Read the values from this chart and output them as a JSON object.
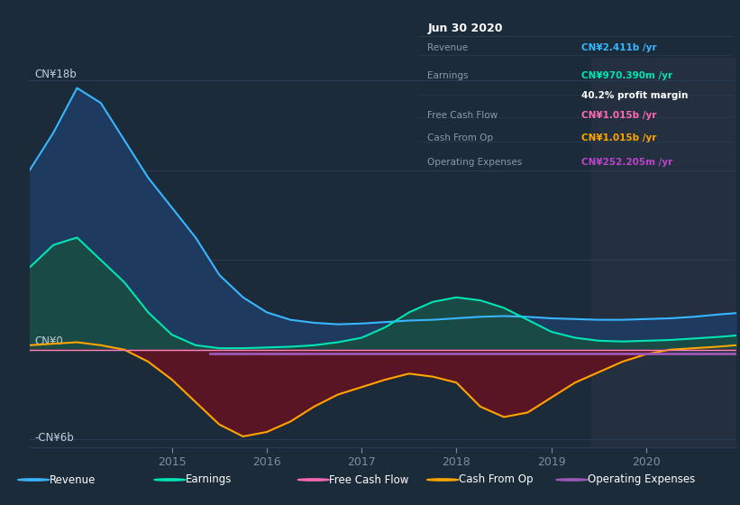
{
  "background_color": "#1c2b3a",
  "plot_bg_color": "#1c2b3a",
  "shaded_region_color": "#243040",
  "ylabel_top": "CN¥18b",
  "ylabel_zero": "CN¥0",
  "ylabel_bottom": "-CN¥6b",
  "x_ticks": [
    2015,
    2016,
    2017,
    2018,
    2019,
    2020
  ],
  "ylim": [
    -6.5,
    19.5
  ],
  "xlim": [
    2013.5,
    2020.95
  ],
  "shaded_x_start": 2019.42,
  "tooltip_title": "Jun 30 2020",
  "legend_items": [
    {
      "label": "Revenue",
      "color": "#38b6ff"
    },
    {
      "label": "Earnings",
      "color": "#00e5b4"
    },
    {
      "label": "Free Cash Flow",
      "color": "#ff69b4"
    },
    {
      "label": "Cash From Op",
      "color": "#ffa500"
    },
    {
      "label": "Operating Expenses",
      "color": "#9b59b6"
    }
  ],
  "x": [
    2013.5,
    2013.75,
    2014.0,
    2014.25,
    2014.5,
    2014.75,
    2015.0,
    2015.25,
    2015.5,
    2015.75,
    2016.0,
    2016.25,
    2016.5,
    2016.75,
    2017.0,
    2017.25,
    2017.5,
    2017.75,
    2018.0,
    2018.25,
    2018.5,
    2018.75,
    2019.0,
    2019.25,
    2019.5,
    2019.75,
    2020.0,
    2020.25,
    2020.5,
    2020.75,
    2020.95
  ],
  "revenue": [
    12,
    14.5,
    17.5,
    16.5,
    14,
    11.5,
    9.5,
    7.5,
    5.0,
    3.5,
    2.5,
    2.0,
    1.8,
    1.7,
    1.75,
    1.85,
    1.95,
    2.0,
    2.1,
    2.2,
    2.25,
    2.2,
    2.1,
    2.05,
    2.0,
    2.0,
    2.05,
    2.1,
    2.2,
    2.35,
    2.45
  ],
  "earnings": [
    5.5,
    7.0,
    7.5,
    6.0,
    4.5,
    2.5,
    1.0,
    0.3,
    0.1,
    0.1,
    0.15,
    0.2,
    0.3,
    0.5,
    0.8,
    1.5,
    2.5,
    3.2,
    3.5,
    3.3,
    2.8,
    2.0,
    1.2,
    0.8,
    0.6,
    0.55,
    0.6,
    0.65,
    0.75,
    0.85,
    0.95
  ],
  "free_cash_flow": [
    0.0,
    0.0,
    0.0,
    0.0,
    0.0,
    0.0,
    0.0,
    0.0,
    0.0,
    0.0,
    0.0,
    0.0,
    0.0,
    0.0,
    0.0,
    0.0,
    0.0,
    0.0,
    0.0,
    0.0,
    0.0,
    0.0,
    0.0,
    0.0,
    0.0,
    0.0,
    0.0,
    0.0,
    0.0,
    0.0,
    0.0
  ],
  "cash_from_op": [
    0.3,
    0.4,
    0.5,
    0.3,
    0.0,
    -0.8,
    -2.0,
    -3.5,
    -5.0,
    -5.8,
    -5.5,
    -4.8,
    -3.8,
    -3.0,
    -2.5,
    -2.0,
    -1.6,
    -1.8,
    -2.2,
    -3.8,
    -4.5,
    -4.2,
    -3.2,
    -2.2,
    -1.5,
    -0.8,
    -0.3,
    0.0,
    0.1,
    0.2,
    0.3
  ],
  "operating_expenses": [
    -0.25,
    -0.25,
    -0.25,
    -0.25,
    -0.25,
    -0.25,
    -0.25,
    -0.25,
    -0.25,
    -0.25,
    -0.25,
    -0.25,
    -0.25,
    -0.25,
    -0.25,
    -0.25,
    -0.25,
    -0.25,
    -0.25,
    -0.25,
    -0.25,
    -0.25,
    -0.25,
    -0.25,
    -0.25,
    -0.25,
    -0.25,
    -0.25,
    -0.25,
    -0.25,
    -0.25
  ],
  "purple_line_x_start": 2015.4,
  "purple_line_y": -0.25,
  "revenue_fill_color": "#1e3a5f",
  "earnings_fill_color": "#1a4a45",
  "cash_neg_fill_color": "#5a1525",
  "revenue_line_color": "#38b6ff",
  "earnings_line_color": "#00e5b4",
  "cash_line_color": "#ffa500",
  "fcf_line_color": "#ff69b4",
  "op_exp_line_color": "#9b59b6"
}
